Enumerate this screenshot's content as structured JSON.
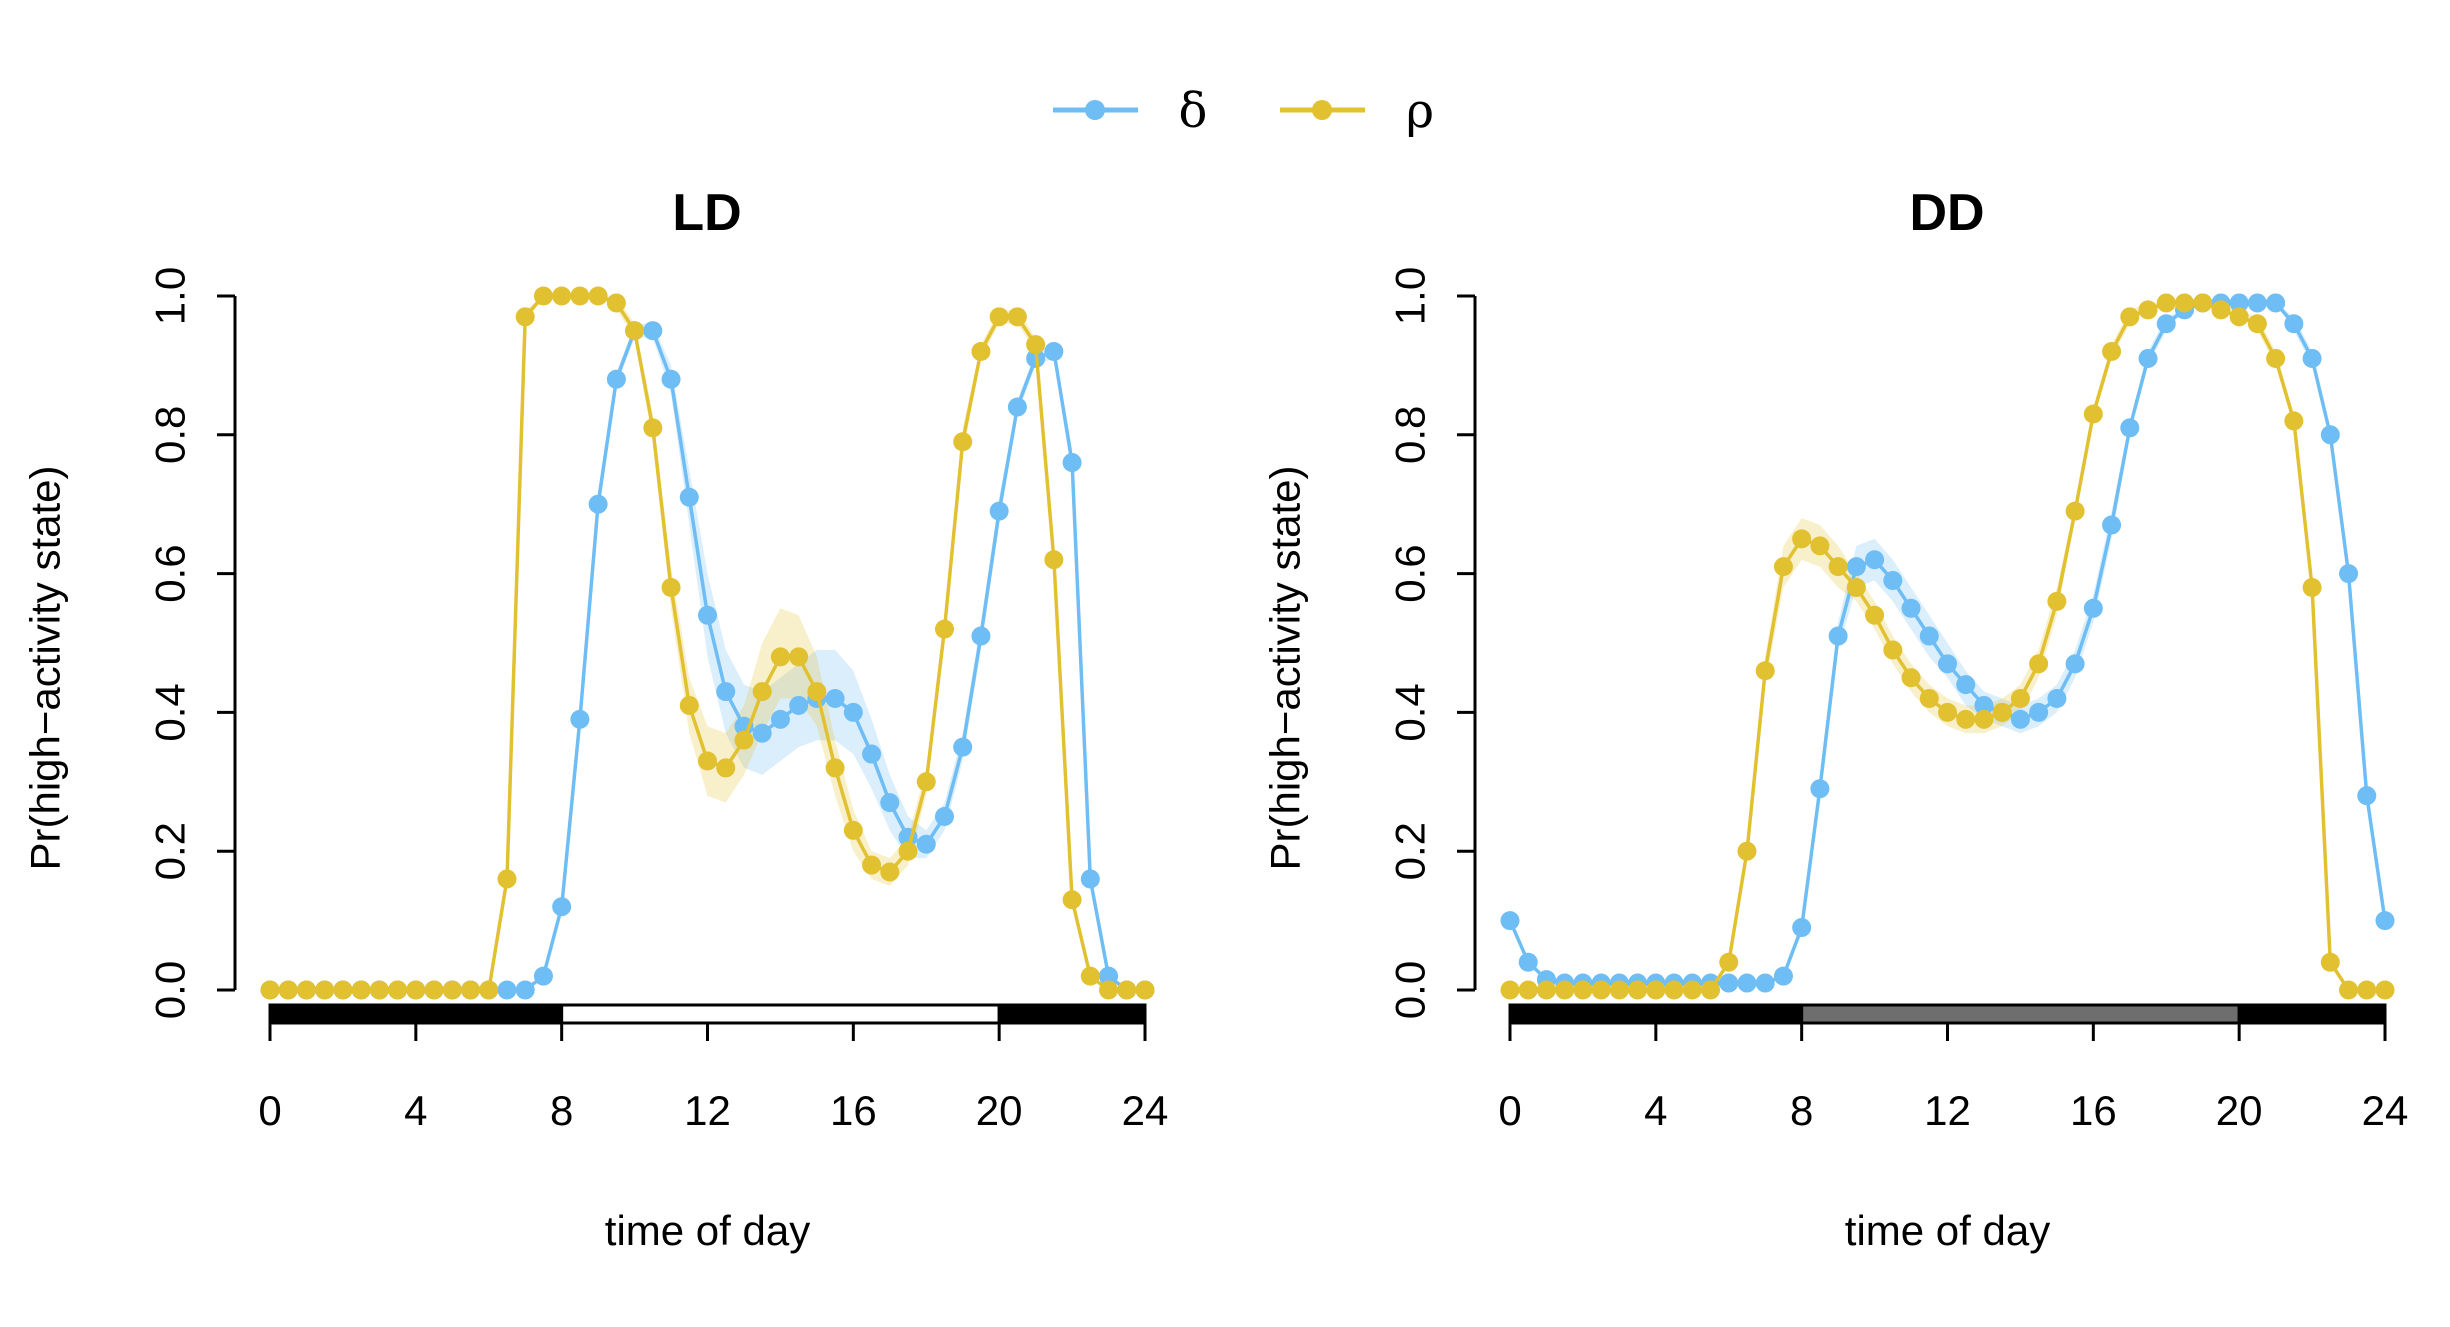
{
  "colors": {
    "delta": "#6ebdf4",
    "rho": "#e2c131",
    "axis": "#000000",
    "dd_subjective_day": "#6e6e6e",
    "ld_light": "#ffffff"
  },
  "legend": {
    "items": [
      {
        "key": "delta",
        "label": "δ"
      },
      {
        "key": "rho",
        "label": "ρ"
      }
    ]
  },
  "chart_data": [
    {
      "type": "line",
      "title": "LD",
      "xlabel": "time of day",
      "ylabel": "Pr(high−activity state)",
      "xlim": [
        0,
        24
      ],
      "ylim": [
        0,
        1
      ],
      "xticks": [
        "0",
        "4",
        "8",
        "12",
        "16",
        "20",
        "24"
      ],
      "yticks": [
        "0.0",
        "0.2",
        "0.4",
        "0.6",
        "0.8",
        "1.0"
      ],
      "light_bar": [
        {
          "from": 0,
          "to": 8,
          "shade": "dark"
        },
        {
          "from": 8,
          "to": 20,
          "shade": "light"
        },
        {
          "from": 20,
          "to": 24,
          "shade": "dark"
        }
      ],
      "series": [
        {
          "name": "δ",
          "key": "delta",
          "x": [
            0,
            0.5,
            1,
            1.5,
            2,
            2.5,
            3,
            3.5,
            4,
            4.5,
            5,
            5.5,
            6,
            6.5,
            7,
            7.5,
            8,
            8.5,
            9,
            9.5,
            10,
            10.5,
            11,
            11.5,
            12,
            12.5,
            13,
            13.5,
            14,
            14.5,
            15,
            15.5,
            16,
            16.5,
            17,
            17.5,
            18,
            18.5,
            19,
            19.5,
            20,
            20.5,
            21,
            21.5,
            22,
            22.5,
            23,
            23.5,
            24
          ],
          "y": [
            0,
            0,
            0,
            0,
            0,
            0,
            0,
            0,
            0,
            0,
            0,
            0,
            0,
            0,
            0,
            0.02,
            0.12,
            0.39,
            0.7,
            0.88,
            0.95,
            0.95,
            0.88,
            0.71,
            0.54,
            0.43,
            0.38,
            0.37,
            0.39,
            0.41,
            0.42,
            0.42,
            0.4,
            0.34,
            0.27,
            0.22,
            0.21,
            0.25,
            0.35,
            0.51,
            0.69,
            0.84,
            0.91,
            0.92,
            0.76,
            0.16,
            0.02,
            0,
            0
          ],
          "ci_lower": [
            0,
            0,
            0,
            0,
            0,
            0,
            0,
            0,
            0,
            0,
            0,
            0,
            0,
            0,
            0,
            0.02,
            0.11,
            0.37,
            0.68,
            0.87,
            0.94,
            0.94,
            0.86,
            0.67,
            0.48,
            0.37,
            0.32,
            0.31,
            0.33,
            0.35,
            0.36,
            0.36,
            0.34,
            0.29,
            0.23,
            0.19,
            0.19,
            0.23,
            0.33,
            0.49,
            0.67,
            0.83,
            0.9,
            0.91,
            0.74,
            0.15,
            0.02,
            0,
            0
          ],
          "ci_upper": [
            0,
            0,
            0,
            0,
            0,
            0,
            0,
            0,
            0,
            0,
            0,
            0,
            0,
            0,
            0,
            0.02,
            0.13,
            0.41,
            0.72,
            0.89,
            0.96,
            0.96,
            0.9,
            0.75,
            0.6,
            0.49,
            0.44,
            0.43,
            0.45,
            0.47,
            0.49,
            0.49,
            0.46,
            0.39,
            0.31,
            0.25,
            0.23,
            0.27,
            0.37,
            0.53,
            0.71,
            0.85,
            0.92,
            0.93,
            0.78,
            0.17,
            0.02,
            0,
            0
          ]
        },
        {
          "name": "ρ",
          "key": "rho",
          "x": [
            0,
            0.5,
            1,
            1.5,
            2,
            2.5,
            3,
            3.5,
            4,
            4.5,
            5,
            5.5,
            6,
            6.5,
            7,
            7.5,
            8,
            8.5,
            9,
            9.5,
            10,
            10.5,
            11,
            11.5,
            12,
            12.5,
            13,
            13.5,
            14,
            14.5,
            15,
            15.5,
            16,
            16.5,
            17,
            17.5,
            18,
            18.5,
            19,
            19.5,
            20,
            20.5,
            21,
            21.5,
            22,
            22.5,
            23,
            23.5,
            24
          ],
          "y": [
            0,
            0,
            0,
            0,
            0,
            0,
            0,
            0,
            0,
            0,
            0,
            0,
            0,
            0.16,
            0.97,
            1.0,
            1.0,
            1.0,
            1.0,
            0.99,
            0.95,
            0.81,
            0.58,
            0.41,
            0.33,
            0.32,
            0.36,
            0.43,
            0.48,
            0.48,
            0.43,
            0.32,
            0.23,
            0.18,
            0.17,
            0.2,
            0.3,
            0.52,
            0.79,
            0.92,
            0.97,
            0.97,
            0.93,
            0.62,
            0.13,
            0.02,
            0,
            0,
            0
          ],
          "ci_lower": [
            0,
            0,
            0,
            0,
            0,
            0,
            0,
            0,
            0,
            0,
            0,
            0,
            0,
            0.15,
            0.96,
            1.0,
            1.0,
            1.0,
            1.0,
            0.98,
            0.94,
            0.79,
            0.55,
            0.37,
            0.28,
            0.27,
            0.31,
            0.37,
            0.42,
            0.42,
            0.38,
            0.28,
            0.2,
            0.16,
            0.15,
            0.18,
            0.28,
            0.5,
            0.77,
            0.91,
            0.96,
            0.96,
            0.92,
            0.6,
            0.12,
            0.02,
            0,
            0,
            0
          ],
          "ci_upper": [
            0,
            0,
            0,
            0,
            0,
            0,
            0,
            0,
            0,
            0,
            0,
            0,
            0,
            0.17,
            0.98,
            1.0,
            1.0,
            1.0,
            1.0,
            1.0,
            0.96,
            0.83,
            0.61,
            0.45,
            0.38,
            0.37,
            0.41,
            0.5,
            0.55,
            0.54,
            0.48,
            0.36,
            0.26,
            0.2,
            0.19,
            0.22,
            0.32,
            0.54,
            0.81,
            0.93,
            0.98,
            0.98,
            0.94,
            0.64,
            0.14,
            0.02,
            0,
            0,
            0
          ]
        }
      ]
    },
    {
      "type": "line",
      "title": "DD",
      "xlabel": "time of day",
      "ylabel": "Pr(high−activity state)",
      "xlim": [
        0,
        24
      ],
      "ylim": [
        0,
        1
      ],
      "xticks": [
        "0",
        "4",
        "8",
        "12",
        "16",
        "20",
        "24"
      ],
      "yticks": [
        "0.0",
        "0.2",
        "0.4",
        "0.6",
        "0.8",
        "1.0"
      ],
      "light_bar": [
        {
          "from": 0,
          "to": 8,
          "shade": "dark"
        },
        {
          "from": 8,
          "to": 20,
          "shade": "grey"
        },
        {
          "from": 20,
          "to": 24,
          "shade": "dark"
        }
      ],
      "series": [
        {
          "name": "δ",
          "key": "delta",
          "x": [
            0,
            0.5,
            1,
            1.5,
            2,
            2.5,
            3,
            3.5,
            4,
            4.5,
            5,
            5.5,
            6,
            6.5,
            7,
            7.5,
            8,
            8.5,
            9,
            9.5,
            10,
            10.5,
            11,
            11.5,
            12,
            12.5,
            13,
            13.5,
            14,
            14.5,
            15,
            15.5,
            16,
            16.5,
            17,
            17.5,
            18,
            18.5,
            19,
            19.5,
            20,
            20.5,
            21,
            21.5,
            22,
            22.5,
            23,
            23.5,
            24
          ],
          "y": [
            0.1,
            0.04,
            0.015,
            0.01,
            0.01,
            0.01,
            0.01,
            0.01,
            0.01,
            0.01,
            0.01,
            0.01,
            0.01,
            0.01,
            0.01,
            0.02,
            0.09,
            0.29,
            0.51,
            0.61,
            0.62,
            0.59,
            0.55,
            0.51,
            0.47,
            0.44,
            0.41,
            0.4,
            0.39,
            0.4,
            0.42,
            0.47,
            0.55,
            0.67,
            0.81,
            0.91,
            0.96,
            0.98,
            0.99,
            0.99,
            0.99,
            0.99,
            0.99,
            0.96,
            0.91,
            0.8,
            0.6,
            0.28,
            0.1
          ],
          "ci_lower": [
            0.1,
            0.04,
            0.015,
            0.01,
            0.01,
            0.01,
            0.01,
            0.01,
            0.01,
            0.01,
            0.01,
            0.01,
            0.01,
            0.01,
            0.01,
            0.02,
            0.08,
            0.27,
            0.49,
            0.58,
            0.59,
            0.56,
            0.52,
            0.48,
            0.45,
            0.41,
            0.39,
            0.38,
            0.37,
            0.38,
            0.4,
            0.45,
            0.53,
            0.65,
            0.8,
            0.9,
            0.95,
            0.98,
            0.99,
            0.99,
            0.99,
            0.99,
            0.99,
            0.95,
            0.9,
            0.79,
            0.59,
            0.27,
            0.1
          ],
          "ci_upper": [
            0.1,
            0.04,
            0.015,
            0.01,
            0.01,
            0.01,
            0.01,
            0.01,
            0.01,
            0.01,
            0.01,
            0.01,
            0.01,
            0.01,
            0.01,
            0.02,
            0.1,
            0.31,
            0.53,
            0.64,
            0.65,
            0.62,
            0.58,
            0.54,
            0.5,
            0.46,
            0.43,
            0.42,
            0.41,
            0.42,
            0.44,
            0.49,
            0.57,
            0.69,
            0.82,
            0.92,
            0.97,
            0.98,
            0.99,
            0.99,
            0.99,
            0.99,
            0.99,
            0.97,
            0.92,
            0.81,
            0.61,
            0.29,
            0.1
          ]
        },
        {
          "name": "ρ",
          "key": "rho",
          "x": [
            0,
            0.5,
            1,
            1.5,
            2,
            2.5,
            3,
            3.5,
            4,
            4.5,
            5,
            5.5,
            6,
            6.5,
            7,
            7.5,
            8,
            8.5,
            9,
            9.5,
            10,
            10.5,
            11,
            11.5,
            12,
            12.5,
            13,
            13.5,
            14,
            14.5,
            15,
            15.5,
            16,
            16.5,
            17,
            17.5,
            18,
            18.5,
            19,
            19.5,
            20,
            20.5,
            21,
            21.5,
            22,
            22.5,
            23,
            23.5,
            24
          ],
          "y": [
            0,
            0,
            0,
            0,
            0,
            0,
            0,
            0,
            0,
            0,
            0,
            0,
            0.04,
            0.2,
            0.46,
            0.61,
            0.65,
            0.64,
            0.61,
            0.58,
            0.54,
            0.49,
            0.45,
            0.42,
            0.4,
            0.39,
            0.39,
            0.4,
            0.42,
            0.47,
            0.56,
            0.69,
            0.83,
            0.92,
            0.97,
            0.98,
            0.99,
            0.99,
            0.99,
            0.98,
            0.97,
            0.96,
            0.91,
            0.82,
            0.58,
            0.04,
            0,
            0,
            0
          ],
          "ci_lower": [
            0,
            0,
            0,
            0,
            0,
            0,
            0,
            0,
            0,
            0,
            0,
            0,
            0.04,
            0.19,
            0.44,
            0.58,
            0.62,
            0.61,
            0.58,
            0.56,
            0.52,
            0.47,
            0.43,
            0.4,
            0.38,
            0.37,
            0.37,
            0.38,
            0.4,
            0.45,
            0.54,
            0.68,
            0.82,
            0.91,
            0.96,
            0.98,
            0.99,
            0.99,
            0.99,
            0.98,
            0.97,
            0.95,
            0.9,
            0.81,
            0.57,
            0.04,
            0,
            0,
            0
          ],
          "ci_upper": [
            0,
            0,
            0,
            0,
            0,
            0,
            0,
            0,
            0,
            0,
            0,
            0,
            0.04,
            0.21,
            0.48,
            0.64,
            0.68,
            0.67,
            0.64,
            0.6,
            0.56,
            0.51,
            0.47,
            0.44,
            0.42,
            0.41,
            0.41,
            0.42,
            0.44,
            0.49,
            0.58,
            0.7,
            0.84,
            0.93,
            0.98,
            0.99,
            0.99,
            0.99,
            0.99,
            0.99,
            0.98,
            0.97,
            0.92,
            0.83,
            0.59,
            0.04,
            0,
            0,
            0
          ]
        }
      ]
    }
  ]
}
